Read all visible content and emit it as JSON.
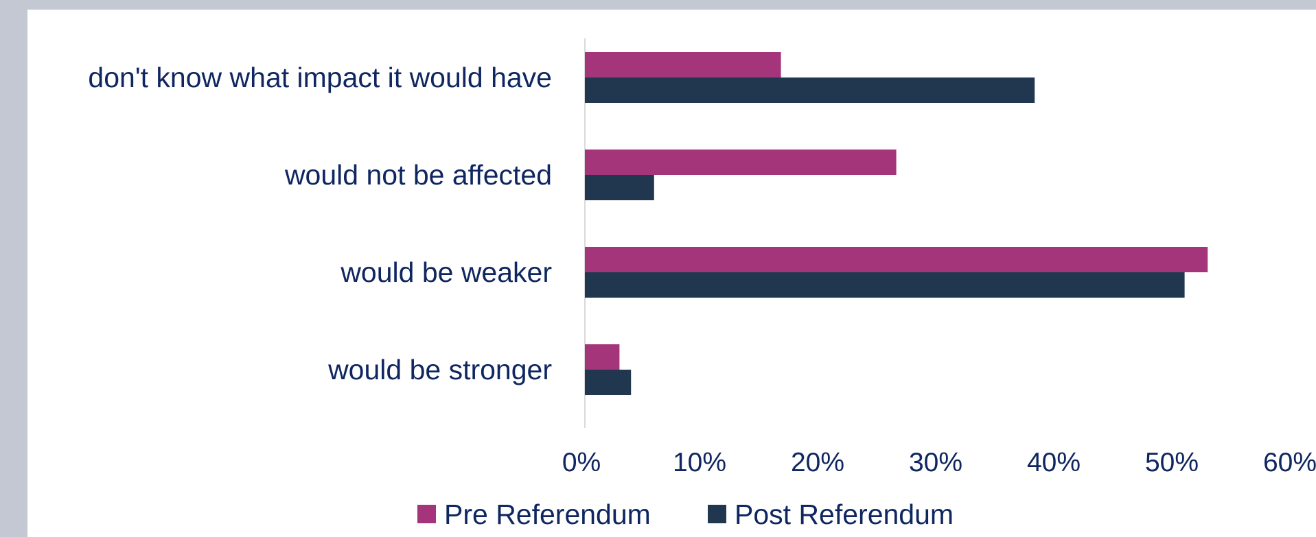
{
  "chart_data": {
    "type": "bar",
    "orientation": "horizontal",
    "categories": [
      "don't know what impact it would have",
      "would not be affected",
      "would be weaker",
      "would be stronger"
    ],
    "series": [
      {
        "name": "Pre Referendum",
        "color": "#a5357a",
        "values": [
          17,
          27,
          54,
          3
        ]
      },
      {
        "name": "Post Referendum",
        "color": "#213750",
        "values": [
          39,
          6,
          52,
          4
        ]
      }
    ],
    "xlim": [
      0,
      60
    ],
    "xticks": [
      "0%",
      "10%",
      "20%",
      "30%",
      "40%",
      "50%",
      "60%"
    ],
    "xlabel": "",
    "ylabel": "",
    "grid": false,
    "legend_position": "bottom"
  }
}
